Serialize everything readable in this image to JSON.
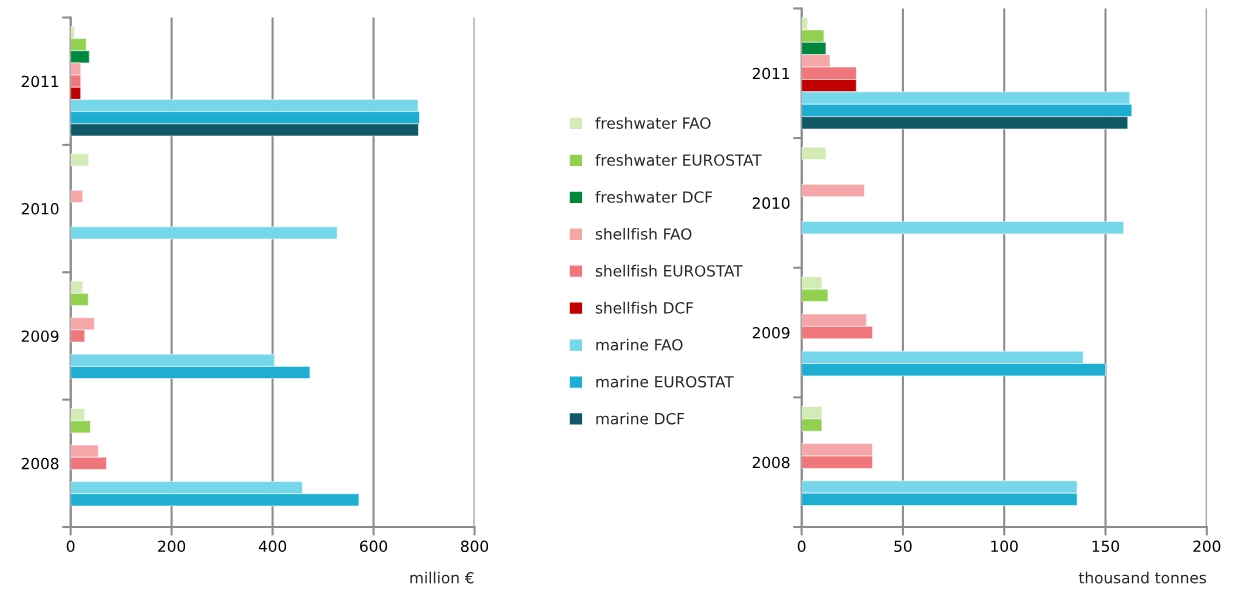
{
  "chart_data": [
    {
      "type": "bar",
      "orientation": "horizontal",
      "categories": [
        "2011",
        "2010",
        "2009",
        "2008"
      ],
      "xlabel": "million €",
      "xlim": [
        0,
        800
      ],
      "xticks": [
        0,
        200,
        400,
        600,
        800
      ],
      "grid": "x",
      "legend": "right",
      "series": [
        {
          "name": "freshwater FAO",
          "color": "#d3ecb5",
          "values": [
            8,
            36,
            24,
            28
          ]
        },
        {
          "name": "freshwater EUROSTAT",
          "color": "#92d050",
          "values": [
            31,
            null,
            35,
            39
          ]
        },
        {
          "name": "freshwater DCF",
          "color": "#00873e",
          "values": [
            37,
            null,
            null,
            null
          ]
        },
        {
          "name": "shellfish FAO",
          "color": "#f4a6a8",
          "values": [
            20,
            24,
            47,
            55
          ]
        },
        {
          "name": "shellfish EUROSTAT",
          "color": "#ef767b",
          "values": [
            20,
            null,
            28,
            71
          ]
        },
        {
          "name": "shellfish DCF",
          "color": "#c00000",
          "values": [
            20,
            null,
            null,
            null
          ]
        },
        {
          "name": "marine FAO",
          "color": "#76d6ea",
          "values": [
            688,
            528,
            404,
            459
          ]
        },
        {
          "name": "marine EUROSTAT",
          "color": "#1eaed1",
          "values": [
            691,
            null,
            474,
            571
          ]
        },
        {
          "name": "marine DCF",
          "color": "#0f5a66",
          "values": [
            689,
            null,
            null,
            null
          ]
        }
      ]
    },
    {
      "type": "bar",
      "orientation": "horizontal",
      "categories": [
        "2011",
        "2010",
        "2009",
        "2008"
      ],
      "xlabel": "thousand tonnes",
      "xlim": [
        0,
        200
      ],
      "xticks": [
        0,
        50,
        100,
        150,
        200
      ],
      "grid": "x",
      "series": [
        {
          "color": "#d3ecb5",
          "values": [
            3,
            12,
            10,
            10
          ]
        },
        {
          "color": "#92d050",
          "values": [
            11,
            null,
            13,
            10
          ]
        },
        {
          "color": "#00873e",
          "values": [
            12,
            null,
            null,
            null
          ]
        },
        {
          "color": "#f4a6a8",
          "values": [
            14,
            31,
            32,
            35
          ]
        },
        {
          "color": "#ef767b",
          "values": [
            27,
            null,
            35,
            35
          ]
        },
        {
          "color": "#c00000",
          "values": [
            27,
            null,
            null,
            null
          ]
        },
        {
          "color": "#76d6ea",
          "values": [
            162,
            159,
            139,
            136
          ]
        },
        {
          "color": "#1eaed1",
          "values": [
            163,
            null,
            150,
            136
          ]
        },
        {
          "color": "#0f5a66",
          "values": [
            161,
            null,
            null,
            null
          ]
        }
      ]
    }
  ]
}
